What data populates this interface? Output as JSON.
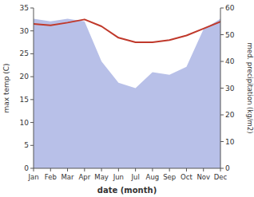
{
  "chart_data": {
    "type": "line",
    "categories": [
      "Jan",
      "Feb",
      "Mar",
      "Apr",
      "May",
      "Jun",
      "Jul",
      "Aug",
      "Sep",
      "Oct",
      "Nov",
      "Dec"
    ],
    "xlabel": "date (month)",
    "ylabel": "max temp (C)",
    "y2label": "med. precipitation (kg/m2)",
    "ylim": [
      0,
      35
    ],
    "yticks": [
      0,
      5,
      10,
      15,
      20,
      25,
      30,
      35
    ],
    "y2lim": [
      0,
      60
    ],
    "y2ticks": [
      0,
      10,
      20,
      30,
      40,
      50,
      60
    ],
    "series": [
      {
        "type": "area",
        "axis": "y2",
        "color": "#b8c0e8",
        "values": [
          56.0,
          55.0,
          56.0,
          55.0,
          40.0,
          32.0,
          30.0,
          36.0,
          35.0,
          38.0,
          52.0,
          56.0
        ]
      },
      {
        "type": "line",
        "color": "#c0392b",
        "values": [
          31.5,
          31.2,
          31.8,
          32.5,
          31.0,
          28.5,
          27.5,
          27.5,
          28.0,
          29.0,
          30.5,
          32.0
        ]
      }
    ]
  }
}
